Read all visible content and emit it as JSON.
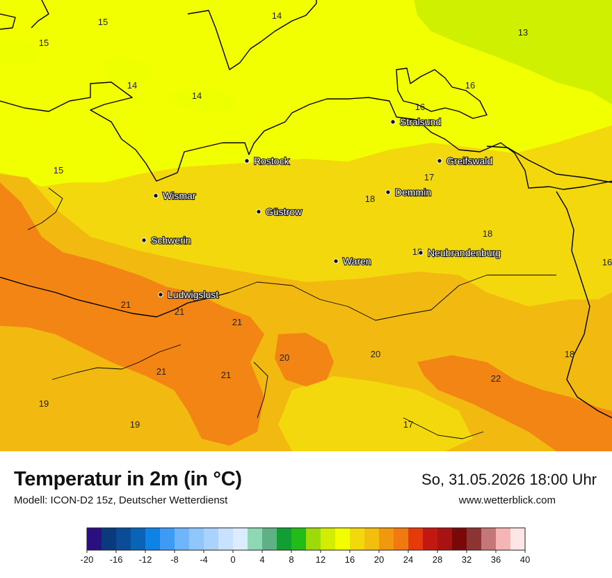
{
  "title": "Temperatur in 2m (in °C)",
  "model": "Modell: ICON-D2 15z, Deutscher Wetterdienst",
  "datetime": "So, 31.05.2026 18:00 Uhr",
  "website": "www.wetterblick.com",
  "cities": [
    {
      "name": "Stralsund"
    },
    {
      "name": "Greifswald"
    },
    {
      "name": "Rostock"
    },
    {
      "name": "Demmin"
    },
    {
      "name": "Wismar"
    },
    {
      "name": "Güstrow"
    },
    {
      "name": "Schwerin"
    },
    {
      "name": "Neubrandenburg"
    },
    {
      "name": "Waren"
    },
    {
      "name": "Ludwigslust"
    }
  ],
  "legend": {
    "tick_labels": [
      "-20",
      "-16",
      "-12",
      "-8",
      "-4",
      "0",
      "4",
      "8",
      "12",
      "16",
      "20",
      "24",
      "28",
      "32",
      "36",
      "40"
    ],
    "colors": [
      "#2a0f80",
      "#0a3a7d",
      "#0a4c96",
      "#0a63b4",
      "#0f82e6",
      "#3e9bf5",
      "#6eb5fb",
      "#8fc6fc",
      "#a9d2fd",
      "#c8e1fe",
      "#dcecff",
      "#8ed8b6",
      "#60b086",
      "#119e33",
      "#22bc18",
      "#9ed90a",
      "#d2ec02",
      "#f2fd00",
      "#f1d90b",
      "#f2bf0f",
      "#f2980f",
      "#f27810",
      "#e63a0a",
      "#c31712",
      "#a81213",
      "#7a0808",
      "#8c3333",
      "#c57676",
      "#f6b5b5",
      "#ffe6e6"
    ]
  },
  "map_colors": {
    "t13": "#cff000",
    "t14": "#eeff00",
    "t16": "#f2ff00",
    "t18": "#f2d80c",
    "t20": "#f2b911",
    "t22": "#f28513"
  },
  "isotherm_labels": [
    "14",
    "15",
    "15",
    "14",
    "14",
    "13",
    "16",
    "16",
    "15",
    "17",
    "18",
    "18",
    "18",
    "16",
    "21",
    "21",
    "21",
    "20",
    "20",
    "21",
    "21",
    "18",
    "19",
    "19",
    "22",
    "17"
  ]
}
